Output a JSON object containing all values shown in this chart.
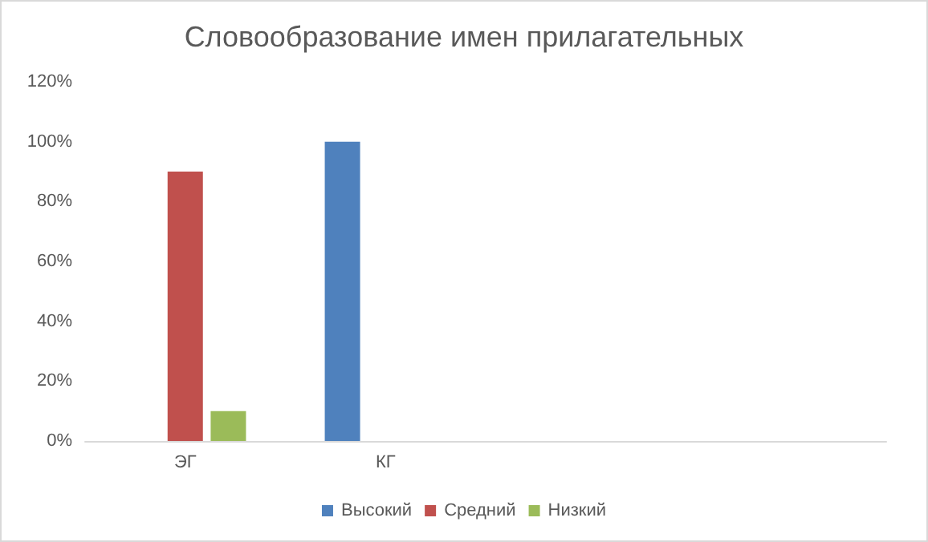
{
  "chart_data": {
    "type": "bar",
    "title": "Словообразование имен прилагательных",
    "categories": [
      "ЭГ",
      "КГ",
      null,
      null
    ],
    "series": [
      {
        "name": "Высокий",
        "color": "#4f81bd",
        "values": [
          0,
          100,
          null,
          null
        ]
      },
      {
        "name": "Средний",
        "color": "#c0504d",
        "values": [
          90,
          0,
          null,
          null
        ]
      },
      {
        "name": "Низкий",
        "color": "#9bbb59",
        "values": [
          10,
          0,
          null,
          null
        ]
      }
    ],
    "ylim": [
      0,
      120
    ],
    "yticks": [
      {
        "value": 0,
        "label": "0%"
      },
      {
        "value": 20,
        "label": "20%"
      },
      {
        "value": 40,
        "label": "40%"
      },
      {
        "value": 60,
        "label": "60%"
      },
      {
        "value": 80,
        "label": "80%"
      },
      {
        "value": 100,
        "label": "100%"
      },
      {
        "value": 120,
        "label": "120%"
      }
    ],
    "grid": false,
    "legend": "bottom"
  }
}
